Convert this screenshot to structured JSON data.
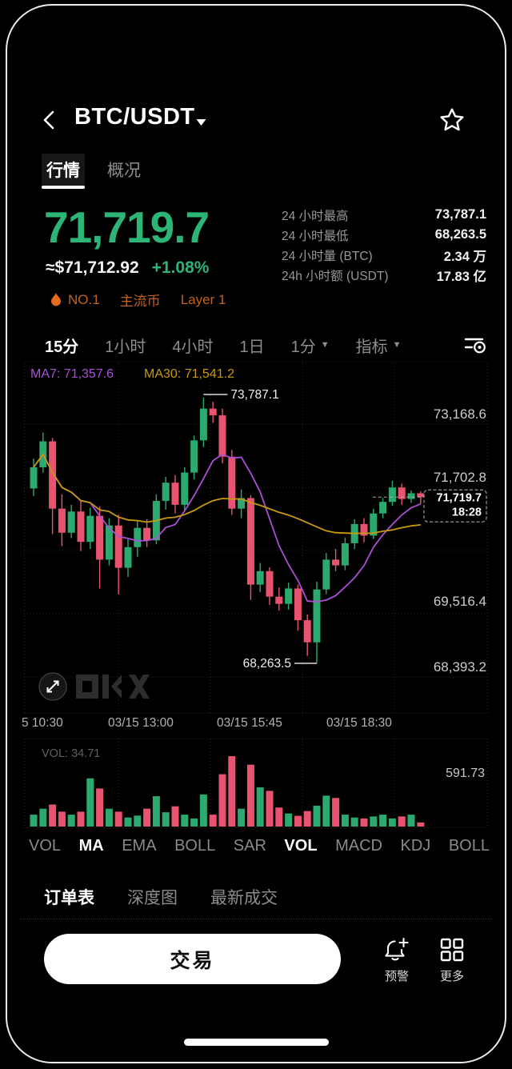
{
  "header": {
    "title": "BTC/USDT"
  },
  "icons": {
    "caret_down": "▼"
  },
  "tabs": [
    {
      "label": "行情"
    },
    {
      "label": "概况"
    }
  ],
  "price": {
    "last": "71,719.7",
    "fiat": "≈$71,712.92",
    "change": "+1.08%"
  },
  "badges": {
    "rank": "NO.1",
    "tag1": "主流币",
    "tag2": "Layer 1"
  },
  "stats": [
    {
      "label": "24 小时最高",
      "value": "73,787.1"
    },
    {
      "label": "24 小时最低",
      "value": "68,263.5"
    },
    {
      "label": "24 小时量 (BTC)",
      "value": "2.34 万"
    },
    {
      "label": "24h 小时额 (USDT)",
      "value": "17.83 亿"
    }
  ],
  "timeframes": [
    {
      "label": "15分"
    },
    {
      "label": "1小时"
    },
    {
      "label": "4小时"
    },
    {
      "label": "1日"
    },
    {
      "label": "1分"
    },
    {
      "label": "指标"
    }
  ],
  "watermark": "OKX",
  "chart_data": {
    "type": "candlestick",
    "title": "BTC/USDT 15分 K线",
    "ma_legend": [
      {
        "label": "MA7: 71,357.6",
        "period": 7,
        "color": "#AB4FD6"
      },
      {
        "label": "MA30: 71,541.2",
        "period": 30,
        "color": "#C7990F"
      }
    ],
    "y_axis_labels": [
      "73,168.6",
      "71,702.8",
      "69,516.4",
      "68,393.2"
    ],
    "x_axis_labels": [
      "5 10:30",
      "03/15 13:00",
      "03/15 15:45",
      "03/15 18:30"
    ],
    "high_annotation": "73,787.1",
    "low_annotation": "68,263.5",
    "last_price": "71,719.7",
    "last_time": "18:28",
    "price_range": [
      68263.5,
      73787.1
    ],
    "candles": [
      [
        71900,
        72520,
        71740,
        72340
      ],
      [
        72340,
        73060,
        72230,
        72880
      ],
      [
        72880,
        72950,
        70950,
        71480
      ],
      [
        71480,
        71780,
        70700,
        70980
      ],
      [
        70980,
        71560,
        70870,
        71420
      ],
      [
        71420,
        71640,
        70600,
        70790
      ],
      [
        70790,
        71500,
        70640,
        71330
      ],
      [
        71330,
        71520,
        69820,
        70420
      ],
      [
        70420,
        71280,
        70300,
        71130
      ],
      [
        71130,
        71350,
        69700,
        70250
      ],
      [
        70250,
        70840,
        70060,
        70680
      ],
      [
        70680,
        71240,
        70480,
        71080
      ],
      [
        71080,
        71260,
        70680,
        70820
      ],
      [
        70820,
        71780,
        70740,
        71640
      ],
      [
        71640,
        72140,
        71460,
        72020
      ],
      [
        72020,
        72180,
        71380,
        71560
      ],
      [
        71560,
        72340,
        71420,
        72230
      ],
      [
        72230,
        73000,
        72090,
        72900
      ],
      [
        72900,
        73787.1,
        72760,
        73560
      ],
      [
        73560,
        73700,
        73260,
        73420
      ],
      [
        73420,
        73560,
        72420,
        72560
      ],
      [
        72560,
        72700,
        71350,
        71480
      ],
      [
        71480,
        71880,
        71280,
        71700
      ],
      [
        71700,
        71760,
        69580,
        69900
      ],
      [
        69900,
        70350,
        69740,
        70180
      ],
      [
        70180,
        70260,
        69480,
        69650
      ],
      [
        69650,
        69840,
        69360,
        69500
      ],
      [
        69500,
        69940,
        69380,
        69820
      ],
      [
        69820,
        69900,
        68940,
        69160
      ],
      [
        69160,
        69280,
        68420,
        68700
      ],
      [
        68700,
        69960,
        68263.5,
        69800
      ],
      [
        69800,
        70560,
        69700,
        70420
      ],
      [
        70420,
        70640,
        70180,
        70300
      ],
      [
        70300,
        70880,
        70200,
        70760
      ],
      [
        70760,
        71260,
        70640,
        71160
      ],
      [
        71160,
        71280,
        70780,
        70920
      ],
      [
        70920,
        71480,
        70850,
        71380
      ],
      [
        71380,
        71700,
        71280,
        71620
      ],
      [
        71620,
        72060,
        71540,
        71920
      ],
      [
        71920,
        72000,
        71560,
        71680
      ],
      [
        71680,
        71860,
        71600,
        71800
      ],
      [
        71800,
        71840,
        71580,
        71719.7
      ]
    ],
    "volumes": [
      100,
      150,
      185,
      125,
      100,
      125,
      405,
      320,
      150,
      125,
      76,
      92,
      150,
      255,
      120,
      170,
      100,
      68,
      270,
      100,
      440,
      591.73,
      150,
      520,
      330,
      300,
      160,
      110,
      90,
      130,
      175,
      260,
      240,
      100,
      76,
      68,
      85,
      100,
      68,
      85,
      100,
      34.71
    ],
    "volume_pane": {
      "label": "VOL: 34.71",
      "axis_max": "591.73"
    },
    "colors": {
      "up": "#2CA96E",
      "down": "#E8546F"
    }
  },
  "indicator_tabs": [
    {
      "label": "VOL"
    },
    {
      "label": "MA",
      "selected": true
    },
    {
      "label": "EMA"
    },
    {
      "label": "BOLL"
    },
    {
      "label": "SAR"
    },
    {
      "label": "VOL",
      "selected": true
    },
    {
      "label": "MACD"
    },
    {
      "label": "KDJ"
    },
    {
      "label": "BOLL"
    }
  ],
  "bottom_tabs": [
    {
      "label": "订单表"
    },
    {
      "label": "深度图"
    },
    {
      "label": "最新成交"
    }
  ],
  "actions": {
    "trade": "交易",
    "alert": "预警",
    "more": "更多"
  },
  "colors": {
    "green": "#2CB576",
    "red": "#E8546F",
    "orange": "#C2621F",
    "flame": "#E56B1F"
  }
}
